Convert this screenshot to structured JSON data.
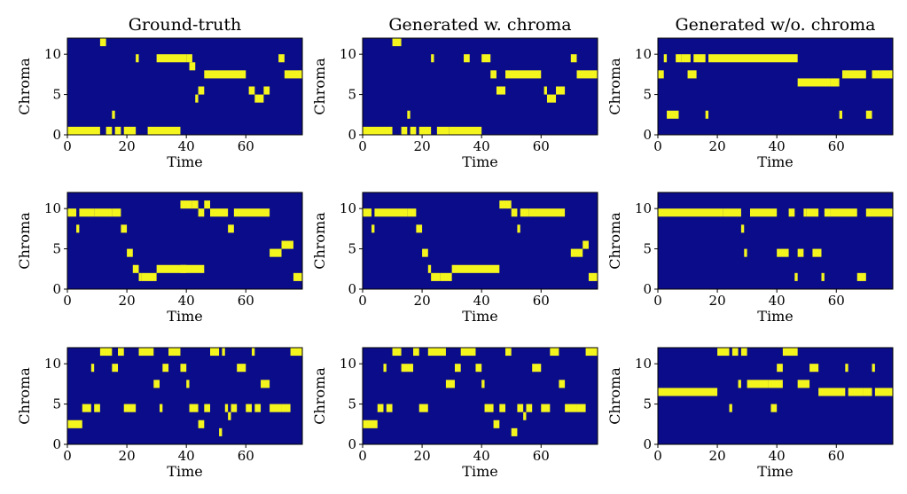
{
  "colors": {
    "background": "#0b0c8a",
    "note": "#f5f51e",
    "axis": "#000000"
  },
  "chart_data": {
    "type": "heatmap",
    "rows": 3,
    "columns": 3,
    "column_titles": [
      "Ground-truth",
      "Generated w. chroma",
      "Generated w/o. chroma"
    ],
    "xlabel": "Time",
    "ylabel": "Chroma",
    "xlim": [
      0,
      79
    ],
    "ylim": [
      0,
      12
    ],
    "xticks": [
      0,
      20,
      40,
      60
    ],
    "yticks": [
      0,
      5,
      10
    ],
    "panels": [
      {
        "row": 0,
        "col": 0,
        "title": "Ground-truth",
        "notes": [
          [
            0,
            11,
            0
          ],
          [
            11,
            13,
            11
          ],
          [
            13,
            15,
            0
          ],
          [
            15,
            16,
            2
          ],
          [
            16,
            18,
            0
          ],
          [
            19,
            23,
            0
          ],
          [
            23,
            24,
            9
          ],
          [
            27,
            38,
            0
          ],
          [
            30,
            40,
            9
          ],
          [
            40,
            42,
            9
          ],
          [
            41,
            43,
            8
          ],
          [
            43,
            44,
            4
          ],
          [
            44,
            46,
            5
          ],
          [
            46,
            60,
            7
          ],
          [
            61,
            63,
            5
          ],
          [
            63,
            66,
            4
          ],
          [
            66,
            68,
            5
          ],
          [
            71,
            73,
            9
          ],
          [
            73,
            79,
            7
          ]
        ]
      },
      {
        "row": 0,
        "col": 1,
        "title": "Generated w. chroma",
        "notes": [
          [
            0,
            10,
            0
          ],
          [
            10,
            13,
            11
          ],
          [
            13,
            15,
            0
          ],
          [
            15,
            16,
            2
          ],
          [
            16,
            18,
            0
          ],
          [
            19,
            23,
            0
          ],
          [
            23,
            24,
            9
          ],
          [
            25,
            29,
            0
          ],
          [
            29,
            40,
            0
          ],
          [
            34,
            36,
            9
          ],
          [
            40,
            43,
            9
          ],
          [
            43,
            45,
            7
          ],
          [
            45,
            48,
            5
          ],
          [
            48,
            60,
            7
          ],
          [
            61,
            62,
            5
          ],
          [
            62,
            65,
            4
          ],
          [
            65,
            68,
            5
          ],
          [
            70,
            72,
            9
          ],
          [
            72,
            79,
            7
          ]
        ]
      },
      {
        "row": 0,
        "col": 2,
        "title": "Generated w/o. chroma",
        "notes": [
          [
            0,
            2,
            7
          ],
          [
            2,
            3,
            9
          ],
          [
            3,
            7,
            2
          ],
          [
            6,
            8,
            9
          ],
          [
            8,
            11,
            9
          ],
          [
            10,
            13,
            7
          ],
          [
            12,
            16,
            9
          ],
          [
            16,
            17,
            2
          ],
          [
            17,
            47,
            9
          ],
          [
            47,
            58,
            6
          ],
          [
            58,
            61,
            6
          ],
          [
            61,
            62,
            2
          ],
          [
            62,
            70,
            7
          ],
          [
            70,
            72,
            2
          ],
          [
            72,
            79,
            7
          ]
        ]
      },
      {
        "row": 1,
        "col": 0,
        "title": "",
        "notes": [
          [
            0,
            3,
            9
          ],
          [
            3,
            4,
            7
          ],
          [
            4,
            9,
            9
          ],
          [
            9,
            15,
            9
          ],
          [
            15,
            18,
            9
          ],
          [
            18,
            20,
            7
          ],
          [
            20,
            22,
            4
          ],
          [
            22,
            24,
            2
          ],
          [
            24,
            25,
            1
          ],
          [
            25,
            30,
            1
          ],
          [
            30,
            46,
            2
          ],
          [
            38,
            40,
            2
          ],
          [
            38,
            42,
            10
          ],
          [
            42,
            44,
            10
          ],
          [
            44,
            46,
            9
          ],
          [
            46,
            48,
            10
          ],
          [
            48,
            54,
            9
          ],
          [
            54,
            56,
            7
          ],
          [
            56,
            68,
            9
          ],
          [
            68,
            72,
            4
          ],
          [
            72,
            76,
            5
          ],
          [
            76,
            79,
            1
          ]
        ]
      },
      {
        "row": 1,
        "col": 1,
        "title": "",
        "notes": [
          [
            0,
            3,
            9
          ],
          [
            3,
            4,
            7
          ],
          [
            4,
            15,
            9
          ],
          [
            15,
            18,
            9
          ],
          [
            18,
            20,
            7
          ],
          [
            20,
            22,
            4
          ],
          [
            22,
            23,
            2
          ],
          [
            23,
            26,
            1
          ],
          [
            26,
            30,
            1
          ],
          [
            30,
            46,
            2
          ],
          [
            46,
            50,
            10
          ],
          [
            50,
            52,
            9
          ],
          [
            52,
            53,
            7
          ],
          [
            53,
            56,
            9
          ],
          [
            56,
            68,
            9
          ],
          [
            70,
            74,
            4
          ],
          [
            74,
            76,
            5
          ],
          [
            76,
            79,
            1
          ]
        ]
      },
      {
        "row": 1,
        "col": 2,
        "title": "",
        "notes": [
          [
            0,
            22,
            9
          ],
          [
            22,
            28,
            9
          ],
          [
            28,
            29,
            7
          ],
          [
            29,
            30,
            4
          ],
          [
            31,
            40,
            9
          ],
          [
            40,
            41,
            4
          ],
          [
            41,
            44,
            4
          ],
          [
            44,
            46,
            9
          ],
          [
            46,
            47,
            1
          ],
          [
            47,
            49,
            4
          ],
          [
            49,
            50,
            9
          ],
          [
            50,
            54,
            9
          ],
          [
            52,
            55,
            4
          ],
          [
            55,
            56,
            1
          ],
          [
            56,
            58,
            9
          ],
          [
            58,
            62,
            9
          ],
          [
            62,
            67,
            9
          ],
          [
            67,
            70,
            1
          ],
          [
            70,
            79,
            9
          ]
        ]
      },
      {
        "row": 2,
        "col": 0,
        "title": "",
        "notes": [
          [
            0,
            5,
            2
          ],
          [
            5,
            8,
            4
          ],
          [
            8,
            9,
            9
          ],
          [
            9,
            11,
            4
          ],
          [
            11,
            15,
            11
          ],
          [
            15,
            17,
            9
          ],
          [
            17,
            19,
            11
          ],
          [
            19,
            23,
            4
          ],
          [
            24,
            29,
            11
          ],
          [
            29,
            31,
            7
          ],
          [
            31,
            32,
            4
          ],
          [
            32,
            34,
            9
          ],
          [
            34,
            38,
            11
          ],
          [
            38,
            40,
            9
          ],
          [
            40,
            41,
            7
          ],
          [
            41,
            44,
            4
          ],
          [
            44,
            46,
            2
          ],
          [
            46,
            48,
            4
          ],
          [
            48,
            51,
            11
          ],
          [
            51,
            52,
            1
          ],
          [
            52,
            53,
            11
          ],
          [
            53,
            54,
            4
          ],
          [
            54,
            55,
            3
          ],
          [
            55,
            57,
            4
          ],
          [
            57,
            60,
            9
          ],
          [
            60,
            62,
            4
          ],
          [
            62,
            63,
            11
          ],
          [
            63,
            65,
            4
          ],
          [
            65,
            68,
            7
          ],
          [
            68,
            72,
            4
          ],
          [
            72,
            75,
            4
          ],
          [
            75,
            79,
            11
          ]
        ]
      },
      {
        "row": 2,
        "col": 1,
        "title": "",
        "notes": [
          [
            0,
            5,
            2
          ],
          [
            5,
            7,
            4
          ],
          [
            7,
            8,
            9
          ],
          [
            8,
            10,
            4
          ],
          [
            10,
            13,
            11
          ],
          [
            13,
            17,
            9
          ],
          [
            17,
            19,
            11
          ],
          [
            19,
            22,
            4
          ],
          [
            22,
            28,
            11
          ],
          [
            28,
            31,
            7
          ],
          [
            31,
            33,
            9
          ],
          [
            33,
            38,
            11
          ],
          [
            38,
            40,
            9
          ],
          [
            40,
            41,
            7
          ],
          [
            41,
            44,
            4
          ],
          [
            44,
            46,
            2
          ],
          [
            46,
            48,
            4
          ],
          [
            48,
            50,
            11
          ],
          [
            50,
            52,
            1
          ],
          [
            52,
            54,
            4
          ],
          [
            54,
            55,
            3
          ],
          [
            55,
            57,
            4
          ],
          [
            57,
            60,
            9
          ],
          [
            60,
            63,
            4
          ],
          [
            63,
            66,
            11
          ],
          [
            66,
            68,
            7
          ],
          [
            68,
            72,
            4
          ],
          [
            72,
            75,
            4
          ],
          [
            75,
            79,
            11
          ]
        ]
      },
      {
        "row": 2,
        "col": 2,
        "title": "",
        "notes": [
          [
            0,
            20,
            6
          ],
          [
            20,
            24,
            11
          ],
          [
            24,
            25,
            4
          ],
          [
            25,
            27,
            11
          ],
          [
            27,
            28,
            7
          ],
          [
            28,
            30,
            11
          ],
          [
            30,
            37,
            7
          ],
          [
            37,
            42,
            7
          ],
          [
            38,
            40,
            4
          ],
          [
            40,
            42,
            9
          ],
          [
            42,
            47,
            11
          ],
          [
            47,
            48,
            7
          ],
          [
            48,
            51,
            7
          ],
          [
            51,
            54,
            9
          ],
          [
            54,
            63,
            6
          ],
          [
            63,
            64,
            9
          ],
          [
            64,
            69,
            6
          ],
          [
            69,
            72,
            6
          ],
          [
            72,
            73,
            9
          ],
          [
            73,
            79,
            6
          ]
        ]
      }
    ]
  }
}
